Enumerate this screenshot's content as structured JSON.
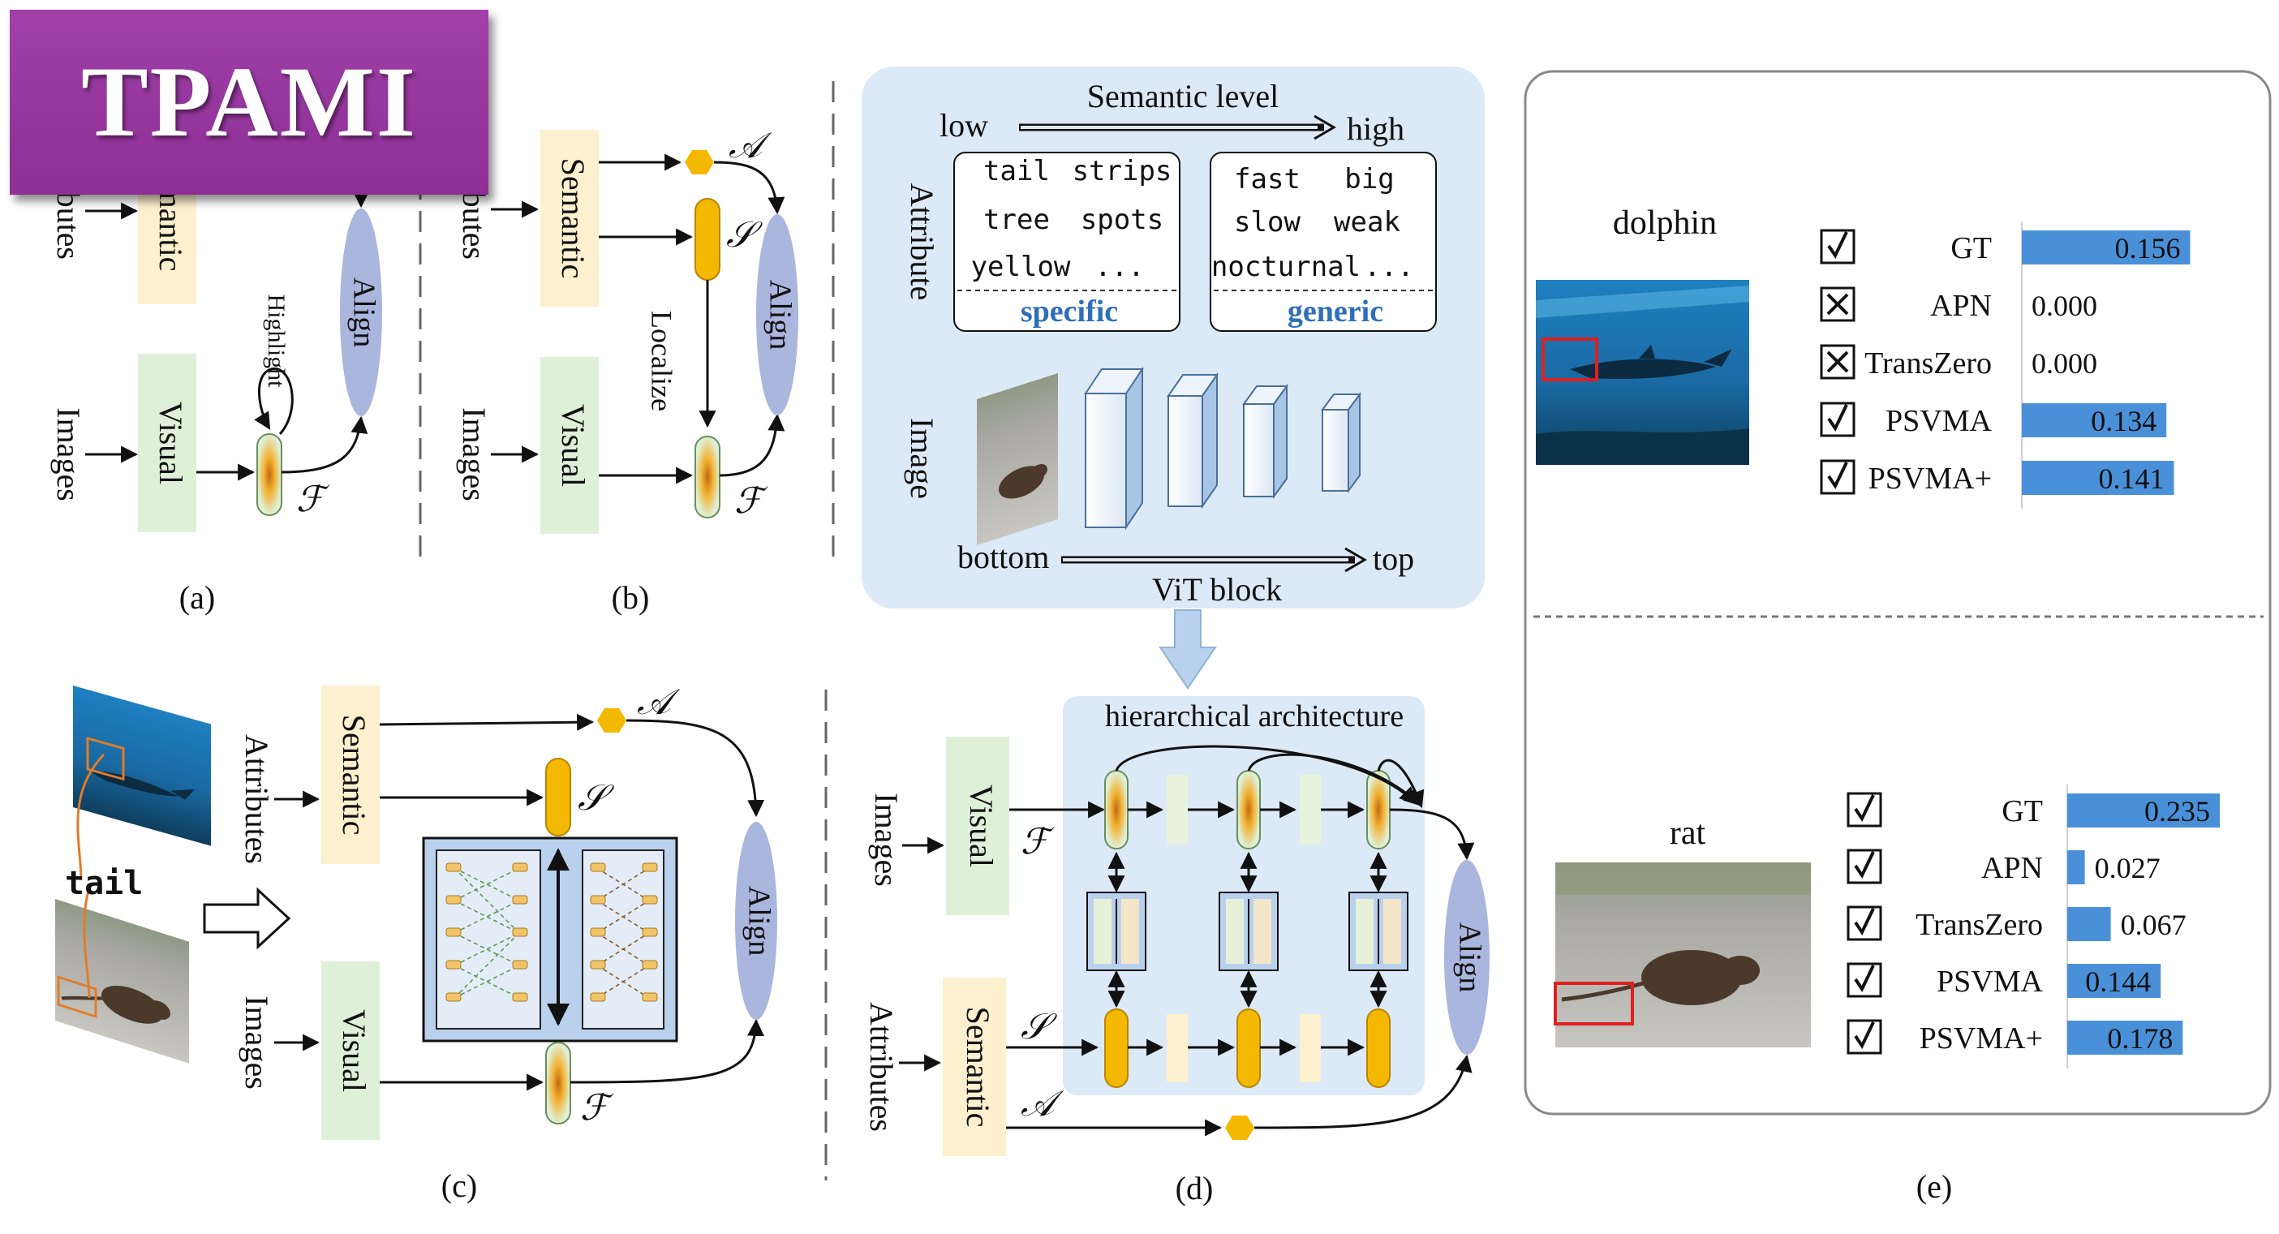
{
  "badge": "TPAMI",
  "colors": {
    "semantic": "#fdf0cf",
    "visual": "#dff0d8",
    "align": "#aab6de",
    "gold": "#f5b800",
    "panel": "#dce9f6",
    "bar": "#4a90d9"
  },
  "labels": {
    "images": "Images",
    "attributes": "Attributes",
    "semantic": "Semantic",
    "visual": "Visual",
    "align": "Align",
    "highlight": "Highlight",
    "localize": "Localize",
    "sym_a": "𝒜",
    "sym_s": "𝒮",
    "sym_f": "ℱ",
    "tail_word": "tail"
  },
  "captions": {
    "a": "(a)",
    "b": "(b)",
    "c": "(c)",
    "d": "(d)",
    "e": "(e)"
  },
  "panel_d": {
    "semantic_level": "Semantic level",
    "low": "low",
    "high": "high",
    "attribute": "Attribute",
    "specific_words": [
      [
        "tail",
        "strips"
      ],
      [
        "tree",
        "spots"
      ],
      [
        "yellow",
        "..."
      ]
    ],
    "generic_words": [
      [
        "fast",
        "big"
      ],
      [
        "slow",
        "weak"
      ],
      [
        "nocturnal",
        "..."
      ]
    ],
    "specific": "specific",
    "generic": "generic",
    "image": "Image",
    "bottom": "bottom",
    "top": "top",
    "vit_block": "ViT block",
    "hierarchical": "hierarchical architecture"
  },
  "panel_e": {
    "examples": [
      {
        "name": "dolphin",
        "rows": [
          {
            "method": "GT",
            "check": "check",
            "value": 0.156,
            "label": "0.156"
          },
          {
            "method": "APN",
            "check": "cross",
            "value": 0.0,
            "label": "0.000"
          },
          {
            "method": "TransZero",
            "check": "cross",
            "value": 0.0,
            "label": "0.000"
          },
          {
            "method": "PSVMA",
            "check": "check",
            "value": 0.134,
            "label": "0.134"
          },
          {
            "method": "PSVMA+",
            "check": "check",
            "value": 0.141,
            "label": "0.141"
          }
        ]
      },
      {
        "name": "rat",
        "rows": [
          {
            "method": "GT",
            "check": "check",
            "value": 0.235,
            "label": "0.235"
          },
          {
            "method": "APN",
            "check": "check",
            "value": 0.027,
            "label": "0.027"
          },
          {
            "method": "TransZero",
            "check": "check",
            "value": 0.067,
            "label": "0.067"
          },
          {
            "method": "PSVMA",
            "check": "check",
            "value": 0.144,
            "label": "0.144"
          },
          {
            "method": "PSVMA+",
            "check": "check",
            "value": 0.178,
            "label": "0.178"
          }
        ]
      }
    ]
  }
}
